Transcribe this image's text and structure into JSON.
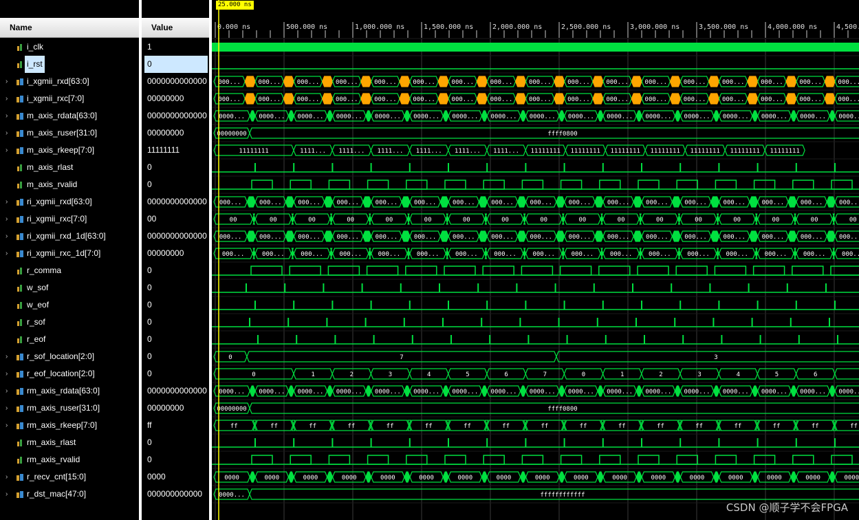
{
  "header": {
    "name_label": "Name",
    "value_label": "Value"
  },
  "cursor": {
    "label": "25.000 ns"
  },
  "ruler": {
    "ticks": [
      "0.000 ns",
      "500.000 ns",
      "1,000.000 ns",
      "1,500.000 ns",
      "2,000.000 ns",
      "2,500.000 ns",
      "3,000.000 ns",
      "3,500.000 ns",
      "4,000.000 ns",
      "4,500."
    ]
  },
  "signals": [
    {
      "name": "i_clk",
      "value": "1",
      "bus": false
    },
    {
      "name": "i_rst",
      "value": "0",
      "bus": false,
      "selected": true
    },
    {
      "name": "i_xgmii_rxd[63:0]",
      "value": "0000000000000",
      "bus": true
    },
    {
      "name": "i_xgmii_rxc[7:0]",
      "value": "00000000",
      "bus": true
    },
    {
      "name": "m_axis_rdata[63:0]",
      "value": "0000000000000",
      "bus": true
    },
    {
      "name": "m_axis_ruser[31:0]",
      "value": "00000000",
      "bus": true
    },
    {
      "name": "m_axis_rkeep[7:0]",
      "value": "11111111",
      "bus": true
    },
    {
      "name": "m_axis_rlast",
      "value": "0",
      "bus": false
    },
    {
      "name": "m_axis_rvalid",
      "value": "0",
      "bus": false
    },
    {
      "name": "ri_xgmii_rxd[63:0]",
      "value": "0000000000000",
      "bus": true
    },
    {
      "name": "ri_xgmii_rxc[7:0]",
      "value": "00",
      "bus": true
    },
    {
      "name": "ri_xgmii_rxd_1d[63:0]",
      "value": "0000000000000",
      "bus": true
    },
    {
      "name": "ri_xgmii_rxc_1d[7:0]",
      "value": "00000000",
      "bus": true
    },
    {
      "name": "r_comma",
      "value": "0",
      "bus": false
    },
    {
      "name": "w_sof",
      "value": "0",
      "bus": false
    },
    {
      "name": "w_eof",
      "value": "0",
      "bus": false
    },
    {
      "name": "r_sof",
      "value": "0",
      "bus": false
    },
    {
      "name": "r_eof",
      "value": "0",
      "bus": false
    },
    {
      "name": "r_sof_location[2:0]",
      "value": "0",
      "bus": true
    },
    {
      "name": "r_eof_location[2:0]",
      "value": "0",
      "bus": true
    },
    {
      "name": "rm_axis_rdata[63:0]",
      "value": "0000000000000",
      "bus": true
    },
    {
      "name": "rm_axis_ruser[31:0]",
      "value": "00000000",
      "bus": true
    },
    {
      "name": "rm_axis_rkeep[7:0]",
      "value": "ff",
      "bus": true
    },
    {
      "name": "rm_axis_rlast",
      "value": "0",
      "bus": false
    },
    {
      "name": "rm_axis_rvalid",
      "value": "0",
      "bus": false
    },
    {
      "name": "r_recv_cnt[15:0]",
      "value": "0000",
      "bus": true
    },
    {
      "name": "r_dst_mac[47:0]",
      "value": "000000000000",
      "bus": true
    }
  ],
  "waves": {
    "i_xgmii_rxd_seg": "000...",
    "i_xgmii_rxc_seg": "000...",
    "m_axis_rdata_seg": "0000...",
    "m_axis_ruser_first": "00000000",
    "m_axis_ruser_rest": "ffff0800",
    "m_axis_rkeep_segs": [
      "11111111",
      "1111...",
      "1111...",
      "1111...",
      "1111...",
      "1111...",
      "1111...",
      "11111111",
      "11111111",
      "11111111",
      "11111111",
      "11111111",
      "11111111",
      "11111111"
    ],
    "ri_xgmii_rxd_seg": "000...",
    "ri_xgmii_rxc_seg": "00",
    "ri_xgmii_rxd_1d_seg": "000...",
    "ri_xgmii_rxc_1d_seg": "000...",
    "ri_xgmii_rxc_1d_first": "0000...",
    "r_sof_location_segs": [
      "0",
      "7",
      "3"
    ],
    "r_eof_location_segs": [
      "0",
      "1",
      "2",
      "3",
      "4",
      "5",
      "6",
      "7",
      "0",
      "1",
      "2",
      "3",
      "4",
      "5",
      "6"
    ],
    "rm_axis_rdata_seg": "0000...",
    "rm_axis_ruser_first": "00000000",
    "rm_axis_ruser_rest": "ffff0800",
    "rm_axis_rkeep_seg": "ff",
    "r_recv_cnt_seg": "0000",
    "r_dst_mac_first": "0000...",
    "r_dst_mac_rest": "ffffffffffff"
  },
  "colors": {
    "wave": "#00e040",
    "accent": "#ffa500",
    "cursor": "#ffff00",
    "grid": "#3a3a3a"
  },
  "watermark": "CSDN @顺子学不会FPGA"
}
